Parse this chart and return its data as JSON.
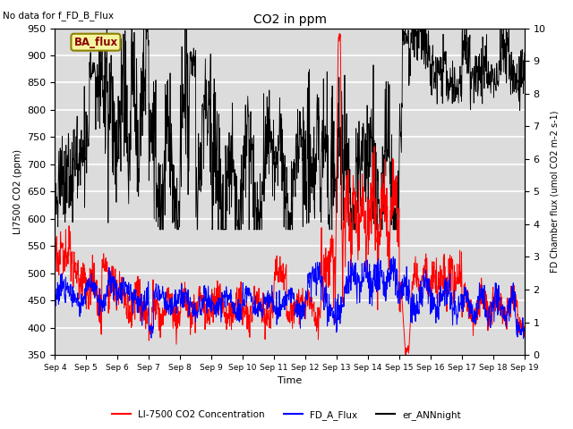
{
  "title": "CO2 in ppm",
  "top_left_text": "No data for f_FD_B_Flux",
  "box_label": "BA_flux",
  "ylabel_left": "LI7500 CO2 (ppm)",
  "ylabel_right": "FD Chamber flux (umol CO2 m-2 s-1)",
  "xlabel": "Time",
  "ylim_left": [
    350,
    950
  ],
  "ylim_right": [
    0.0,
    10.0
  ],
  "yticks_left": [
    350,
    400,
    450,
    500,
    550,
    600,
    650,
    700,
    750,
    800,
    850,
    900,
    950
  ],
  "yticks_right": [
    0.0,
    1.0,
    2.0,
    3.0,
    4.0,
    5.0,
    6.0,
    7.0,
    8.0,
    9.0,
    10.0
  ],
  "xtick_labels": [
    "Sep 4",
    "Sep 5",
    "Sep 6",
    "Sep 7",
    "Sep 8",
    "Sep 9",
    "Sep 10",
    "Sep 11",
    "Sep 12",
    "Sep 13",
    "Sep 14",
    "Sep 15",
    "Sep 16",
    "Sep 17",
    "Sep 18",
    "Sep 19"
  ],
  "background_color": "#dcdcdc",
  "grid_color": "white",
  "box_facecolor": "#f5f5a0",
  "box_edgecolor": "#8b8000"
}
